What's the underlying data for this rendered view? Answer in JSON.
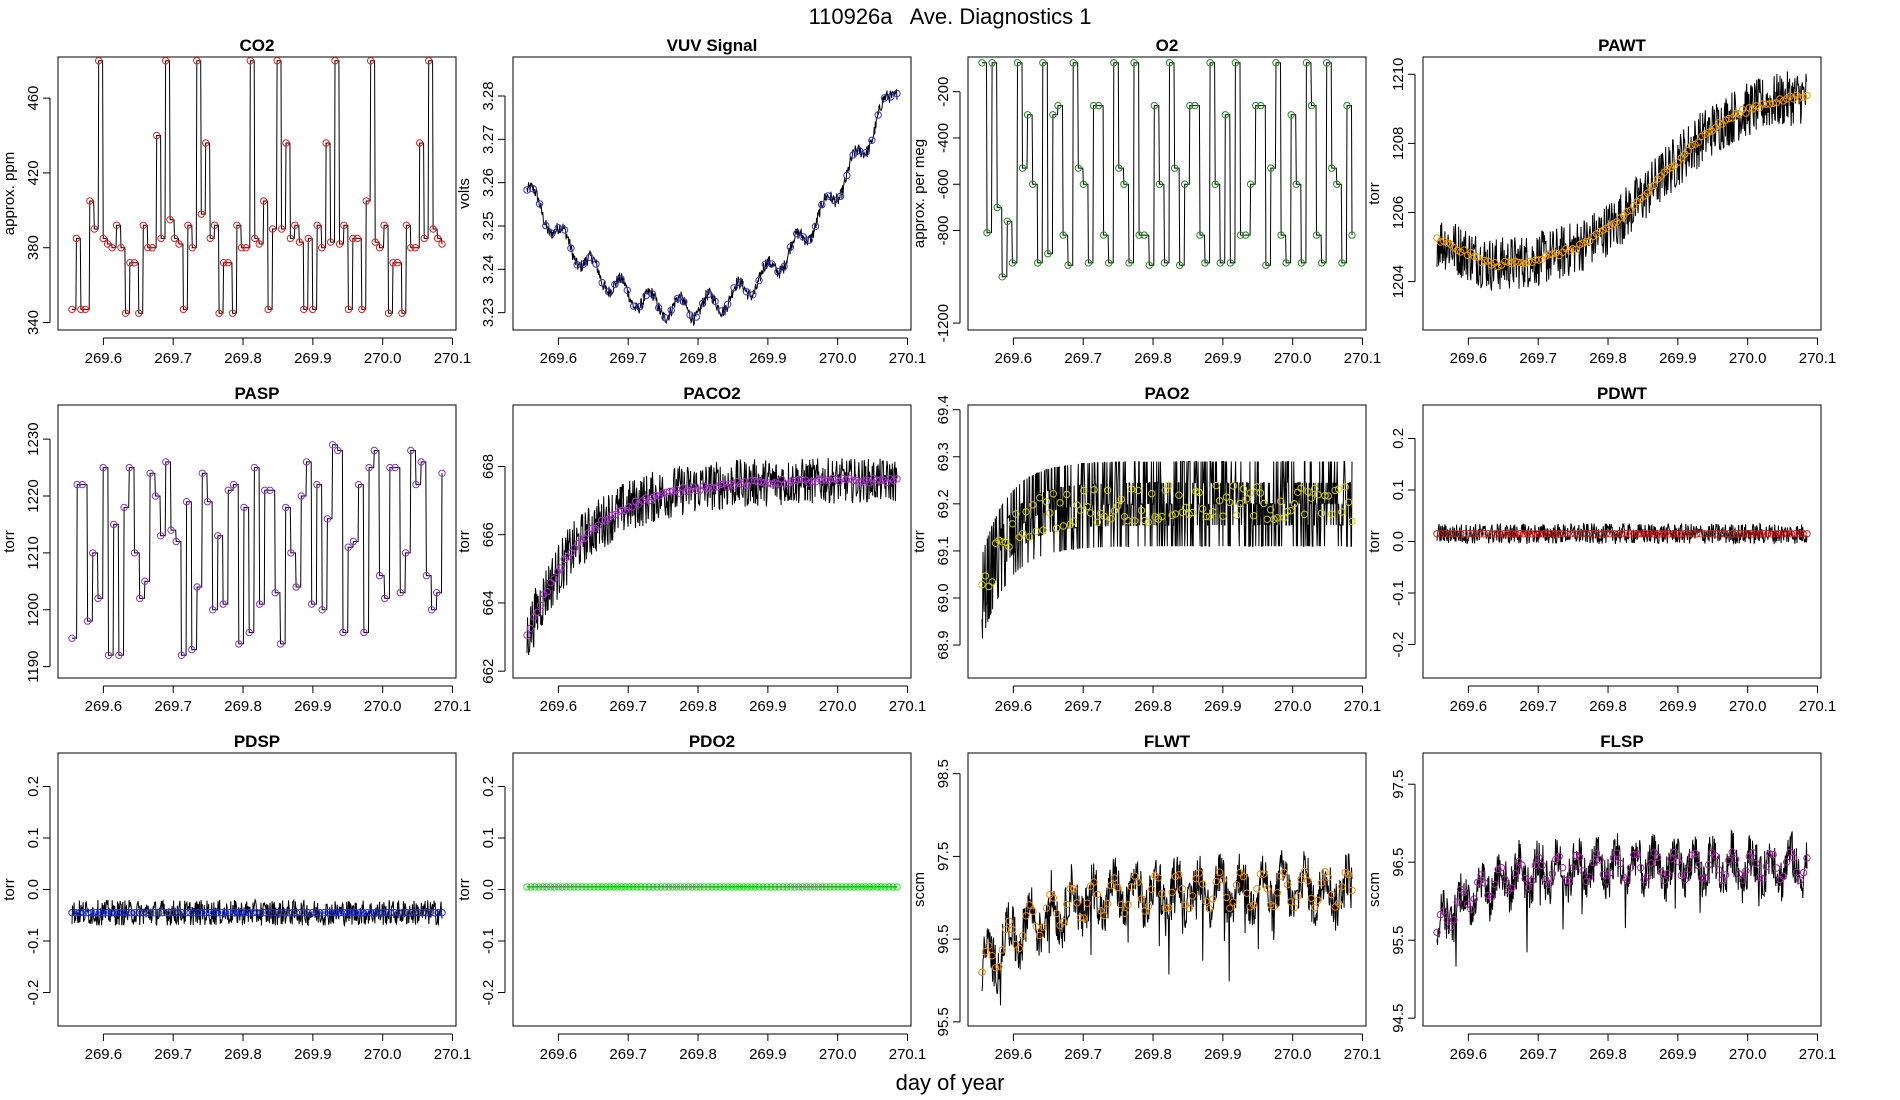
{
  "figure": {
    "title": "110926a   Ave. Diagnostics 1",
    "xlabel": "day of year",
    "x_ticks": [
      "269.6",
      "269.7",
      "269.8",
      "269.9",
      "270.0",
      "270.1"
    ]
  },
  "chart_data": [
    {
      "type": "line",
      "title": "CO2",
      "ylabel": "approx. ppm",
      "xlim": [
        269.535,
        270.105
      ],
      "ylim": [
        336,
        482
      ],
      "y_ticks": [
        "340",
        "380",
        "420",
        "460"
      ],
      "y_tick_values": [
        340,
        380,
        420,
        460
      ],
      "x_range": [
        269.555,
        270.085
      ],
      "point_color": "#dd2222",
      "line_color": "#000000",
      "values": [
        347,
        385,
        347,
        347,
        405,
        390,
        480,
        385,
        382,
        380,
        392,
        380,
        345,
        372,
        372,
        345,
        392,
        380,
        380,
        440,
        385,
        480,
        395,
        385,
        382,
        347,
        392,
        380,
        480,
        398,
        436,
        385,
        392,
        345,
        372,
        372,
        345,
        392,
        380,
        380,
        480,
        385,
        382,
        405,
        347,
        390,
        480,
        390,
        436,
        385,
        392,
        383,
        347,
        385,
        347,
        392,
        380,
        436,
        383,
        480,
        382,
        392,
        347,
        385,
        385,
        347,
        405,
        480,
        383,
        380,
        392,
        345,
        372,
        372,
        345,
        392,
        380,
        380,
        436,
        385,
        480,
        390,
        385,
        382
      ]
    },
    {
      "type": "line",
      "title": "VUV Signal",
      "ylabel": "volts",
      "xlim": [
        269.535,
        270.105
      ],
      "ylim": [
        3.226,
        3.289
      ],
      "y_ticks": [
        "3.23",
        "3.24",
        "3.25",
        "3.26",
        "3.27",
        "3.28"
      ],
      "y_tick_values": [
        3.23,
        3.24,
        3.25,
        3.26,
        3.27,
        3.28
      ],
      "x_range": [
        269.555,
        270.085
      ],
      "point_color": "#3333cc",
      "line_color": "#000000",
      "trend": "vuv"
    },
    {
      "type": "line",
      "title": "O2",
      "ylabel": "approx. per meg",
      "xlim": [
        269.535,
        270.105
      ],
      "ylim": [
        -1230,
        -50
      ],
      "y_ticks": [
        "-1200",
        "-800",
        "-600",
        "-400",
        "-200"
      ],
      "y_tick_values": [
        -1200,
        -800,
        -600,
        -400,
        -200
      ],
      "x_range": [
        269.555,
        270.085
      ],
      "point_color": "#228822",
      "line_color": "#000000",
      "values": [
        -75,
        -810,
        -75,
        -700,
        -1000,
        -760,
        -940,
        -75,
        -530,
        -300,
        -600,
        -940,
        -75,
        -900,
        -300,
        -260,
        -820,
        -950,
        -75,
        -530,
        -600,
        -940,
        -260,
        -260,
        -820,
        -940,
        -75,
        -530,
        -600,
        -940,
        -75,
        -820,
        -820,
        -950,
        -260,
        -600,
        -940,
        -75,
        -530,
        -950,
        -600,
        -260,
        -260,
        -820,
        -940,
        -75,
        -600,
        -940,
        -300,
        -940,
        -75,
        -820,
        -820,
        -600,
        -260,
        -260,
        -950,
        -530,
        -75,
        -820,
        -940,
        -300,
        -600,
        -940,
        -75,
        -260,
        -820,
        -940,
        -75,
        -530,
        -600,
        -940,
        -260,
        -820
      ]
    },
    {
      "type": "line",
      "title": "PAWT",
      "ylabel": "torr",
      "xlim": [
        269.535,
        270.105
      ],
      "ylim": [
        1202.6,
        1210.5
      ],
      "y_ticks": [
        "1204",
        "1206",
        "1208",
        "1210"
      ],
      "y_tick_values": [
        1204,
        1206,
        1208,
        1210
      ],
      "x_range": [
        269.555,
        270.085
      ],
      "point_color": "#ee9900",
      "line_color": "#000000",
      "trend": "pawt",
      "noise": 0.8
    },
    {
      "type": "line",
      "title": "PASP",
      "ylabel": "torr",
      "xlim": [
        269.535,
        270.105
      ],
      "ylim": [
        1188,
        1236
      ],
      "y_ticks": [
        "1190",
        "1200",
        "1210",
        "1220",
        "1230"
      ],
      "y_tick_values": [
        1190,
        1200,
        1210,
        1220,
        1230
      ],
      "x_range": [
        269.555,
        270.085
      ],
      "point_color": "#8833cc",
      "line_color": "#000000",
      "values": [
        1195,
        1222,
        1222,
        1198,
        1210,
        1202,
        1225,
        1192,
        1215,
        1192,
        1218,
        1225,
        1210,
        1202,
        1205,
        1224,
        1220,
        1213,
        1226,
        1214,
        1212,
        1192,
        1219,
        1193,
        1204,
        1224,
        1219,
        1200,
        1213,
        1201,
        1221,
        1222,
        1194,
        1218,
        1196,
        1225,
        1201,
        1221,
        1221,
        1203,
        1194,
        1218,
        1210,
        1204,
        1220,
        1226,
        1201,
        1222,
        1200,
        1216,
        1229,
        1228,
        1196,
        1211,
        1212,
        1222,
        1196,
        1225,
        1228,
        1206,
        1202,
        1225,
        1225,
        1203,
        1210,
        1228,
        1222,
        1226,
        1206,
        1200,
        1203,
        1224
      ]
    },
    {
      "type": "line",
      "title": "PACO2",
      "ylabel": "torr",
      "xlim": [
        269.535,
        270.105
      ],
      "ylim": [
        661.8,
        669.8
      ],
      "y_ticks": [
        "662",
        "664",
        "666",
        "668"
      ],
      "y_tick_values": [
        662,
        664,
        666,
        668
      ],
      "x_range": [
        269.555,
        270.085
      ],
      "point_color": "#aa33cc",
      "line_color": "#000000",
      "trend": "paco2",
      "noise": 0.7
    },
    {
      "type": "line",
      "title": "PAO2",
      "ylabel": "torr",
      "xlim": [
        269.535,
        270.105
      ],
      "ylim": [
        68.83,
        69.41
      ],
      "y_ticks": [
        "68.9",
        "69.0",
        "69.1",
        "69.2",
        "69.3",
        "69.4"
      ],
      "y_tick_values": [
        68.9,
        69.0,
        69.1,
        69.2,
        69.3,
        69.4
      ],
      "x_range": [
        269.555,
        270.085
      ],
      "point_color": "#cccc00",
      "line_color": "#000000",
      "trend": "pao2",
      "noise": 0.1
    },
    {
      "type": "line",
      "title": "PDWT",
      "ylabel": "torr",
      "xlim": [
        269.535,
        270.105
      ],
      "ylim": [
        -0.265,
        0.265
      ],
      "y_ticks": [
        "-0.2",
        "-0.1",
        "0.0",
        "0.1",
        "0.2"
      ],
      "y_tick_values": [
        -0.2,
        -0.1,
        0,
        0.1,
        0.2
      ],
      "x_range": [
        269.555,
        270.085
      ],
      "point_color": "#cc2222",
      "line_color": "#000000",
      "trend": "flat",
      "level": 0.015,
      "noise": 0.02
    },
    {
      "type": "line",
      "title": "PDSP",
      "ylabel": "torr",
      "xlim": [
        269.535,
        270.105
      ],
      "ylim": [
        -0.265,
        0.265
      ],
      "y_ticks": [
        "-0.2",
        "-0.1",
        "0.0",
        "0.1",
        "0.2"
      ],
      "y_tick_values": [
        -0.2,
        -0.1,
        0,
        0.1,
        0.2
      ],
      "x_range": [
        269.555,
        270.085
      ],
      "point_color": "#2233cc",
      "line_color": "#000000",
      "trend": "flat",
      "level": -0.045,
      "noise": 0.025
    },
    {
      "type": "line",
      "title": "PDO2",
      "ylabel": "torr",
      "xlim": [
        269.535,
        270.105
      ],
      "ylim": [
        -0.265,
        0.265
      ],
      "y_ticks": [
        "-0.2",
        "-0.1",
        "0.0",
        "0.1",
        "0.2"
      ],
      "y_tick_values": [
        -0.2,
        -0.1,
        0,
        0.1,
        0.2
      ],
      "x_range": [
        269.555,
        270.085
      ],
      "point_color": "#22dd22",
      "line_color": "#000000",
      "trend": "flat",
      "level": 0.005,
      "noise": 0.0
    },
    {
      "type": "line",
      "title": "FLWT",
      "ylabel": "sccm",
      "xlim": [
        269.535,
        270.105
      ],
      "ylim": [
        95.45,
        98.75
      ],
      "y_ticks": [
        "95.5",
        "96.5",
        "97.5",
        "98.5"
      ],
      "y_tick_values": [
        95.5,
        96.5,
        97.5,
        98.5
      ],
      "x_range": [
        269.555,
        270.085
      ],
      "point_color": "#ee8800",
      "line_color": "#000000",
      "trend": "flwt",
      "noise": 0.3
    },
    {
      "type": "line",
      "title": "FLSP",
      "ylabel": "sccm",
      "xlim": [
        269.535,
        270.105
      ],
      "ylim": [
        94.4,
        97.9
      ],
      "y_ticks": [
        "94.5",
        "95.5",
        "96.5",
        "97.5"
      ],
      "y_tick_values": [
        94.5,
        95.5,
        96.5,
        97.5
      ],
      "x_range": [
        269.555,
        270.085
      ],
      "point_color": "#aa22aa",
      "line_color": "#000000",
      "trend": "flsp",
      "noise": 0.3
    }
  ]
}
